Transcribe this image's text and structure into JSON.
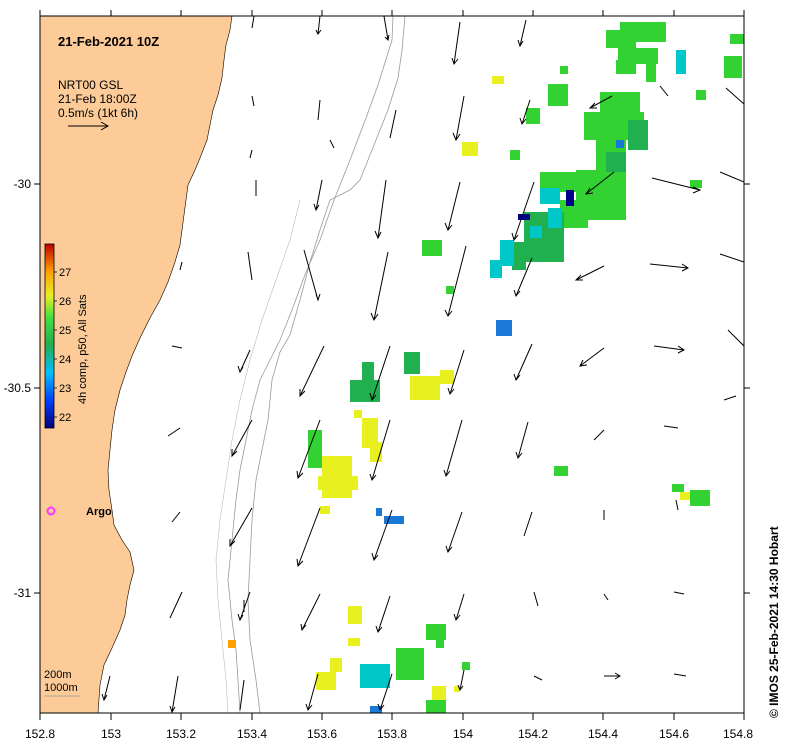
{
  "map": {
    "title": "21-Feb-2021 10Z",
    "product_line1": "NRT00 GSL",
    "product_line2": "21-Feb 18:00Z",
    "scale_label": "0.5m/s (1kt 6h)",
    "colorbar_label": "4h comp, p50, All Sats",
    "colorbar_ticks": [
      "27",
      "26",
      "25",
      "24",
      "23",
      "22"
    ],
    "depth_legend": [
      "200m",
      "1000m"
    ],
    "argo_label": "Argo",
    "credit": "© IMOS 25-Feb-2021 14:30 Hobart",
    "lon_ticks": [
      "152.8",
      "153",
      "153.2",
      "153.4",
      "153.6",
      "153.8",
      "154",
      "154.2",
      "154.4",
      "154.6",
      "154.8"
    ],
    "lat_ticks": [
      "-30",
      "-30.5",
      "-31"
    ],
    "colors": {
      "land": "#fccb98",
      "argo": "#ff33ff",
      "sst_22": "#00008b",
      "sst_23": "#1a78d6",
      "sst_24": "#00c8c8",
      "sst_24_5": "#20b050",
      "sst_25": "#32d232",
      "sst_26": "#e8f020",
      "sst_27": "#ffa000"
    }
  }
}
